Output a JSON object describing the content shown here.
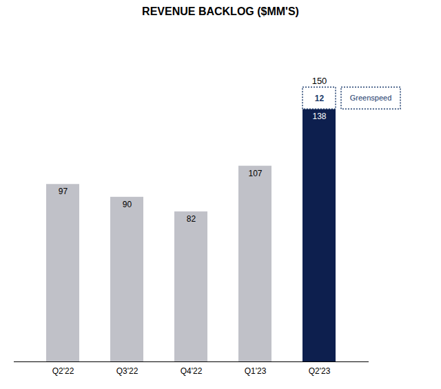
{
  "chart_data": {
    "type": "bar",
    "title": "REVENUE BACKLOG ($MM'S)",
    "categories": [
      "Q2'22",
      "Q3'22",
      "Q4'22",
      "Q1'23",
      "Q2'23"
    ],
    "stacked": true,
    "series": [
      {
        "colors": [
          "#c0c1c8",
          "#c0c1c8",
          "#c0c1c8",
          "#c0c1c8",
          "#0d1f4e"
        ],
        "values": [
          97,
          90,
          82,
          107,
          138
        ]
      },
      {
        "name": "Greenspeed",
        "color": "#1a3a6b",
        "line_style": "dotted",
        "values": [
          null,
          null,
          null,
          null,
          12
        ]
      }
    ],
    "totals": [
      null,
      null,
      null,
      null,
      150
    ],
    "ylim": [
      0,
      175
    ],
    "grid": false,
    "tick_labels": "x",
    "data_labels": true,
    "legend": "right"
  }
}
